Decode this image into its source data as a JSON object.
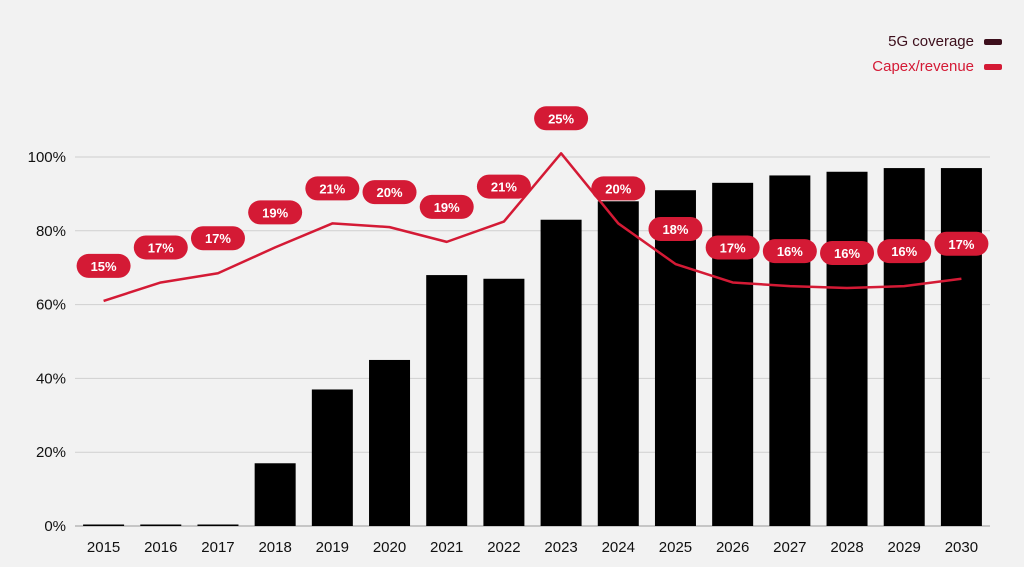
{
  "chart_data": {
    "type": "bar",
    "categories": [
      "2015",
      "2016",
      "2017",
      "2018",
      "2019",
      "2020",
      "2021",
      "2022",
      "2023",
      "2024",
      "2025",
      "2026",
      "2027",
      "2028",
      "2029",
      "2030"
    ],
    "series": [
      {
        "name": "5G coverage",
        "type": "bar",
        "color": "#000000",
        "legend_color": "#3d0f1c",
        "values": [
          0,
          0,
          0,
          17,
          37,
          45,
          68,
          67,
          83,
          88,
          91,
          93,
          95,
          96,
          97,
          97
        ]
      },
      {
        "name": "Capex/revenue",
        "type": "line",
        "color": "#d41a35",
        "values": [
          15,
          17,
          17,
          19,
          21,
          20,
          19,
          21,
          25,
          20,
          18,
          17,
          16,
          16,
          16,
          17
        ],
        "labels": [
          "15%",
          "17%",
          "17%",
          "19%",
          "21%",
          "20%",
          "19%",
          "21%",
          "25%",
          "20%",
          "18%",
          "17%",
          "16%",
          "16%",
          "16%",
          "17%"
        ],
        "line_positions": [
          61,
          66,
          68.5,
          75.5,
          82,
          81,
          77,
          82.5,
          101,
          82,
          71,
          66,
          65,
          64.5,
          65,
          67
        ]
      }
    ],
    "y_axis": {
      "range": [
        0,
        100
      ],
      "ticks": [
        0,
        20,
        40,
        60,
        80,
        100
      ],
      "tick_labels": [
        "0%",
        "20%",
        "40%",
        "60%",
        "80%",
        "100%"
      ]
    },
    "grid": true,
    "legend_position": "top-right"
  }
}
